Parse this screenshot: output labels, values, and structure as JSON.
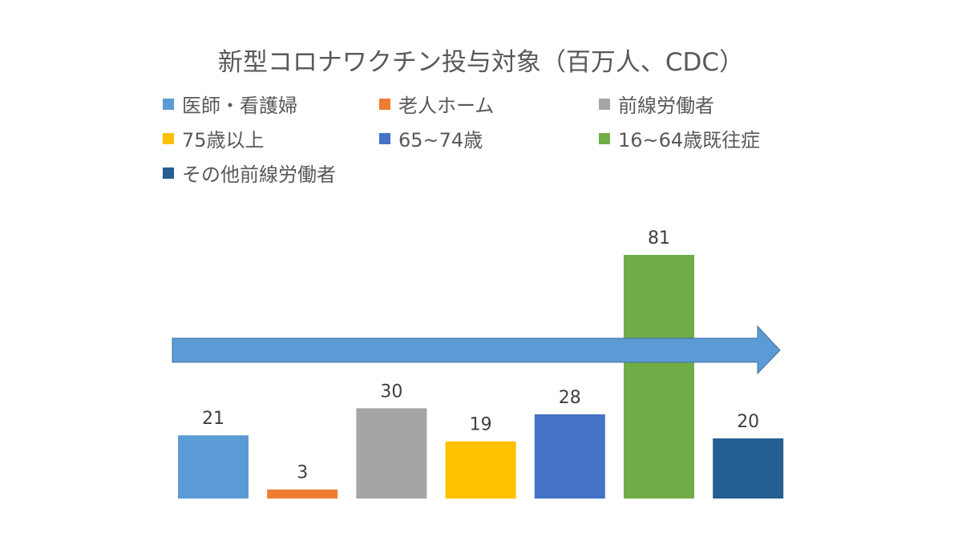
{
  "chart_data": {
    "type": "bar",
    "title": "新型コロナワクチン投与対象（百万人、CDC）",
    "categories": [
      "医師・看護婦",
      "老人ホーム",
      "前線労働者",
      "75歳以上",
      "65~74歳",
      "16~64歳既往症",
      "その他前線労働者"
    ],
    "values": [
      21,
      3,
      30,
      19,
      28,
      81,
      20
    ],
    "colors": [
      "#5b9bd5",
      "#ed7d31",
      "#a5a5a5",
      "#ffc000",
      "#4472c4",
      "#70ad47",
      "#255e91"
    ],
    "data_labels": true,
    "legend_placement": "top",
    "grid": false,
    "ylim": [
      0,
      81
    ],
    "annotation": {
      "type": "arrow",
      "direction": "right",
      "color": "#5b9bd5"
    }
  }
}
